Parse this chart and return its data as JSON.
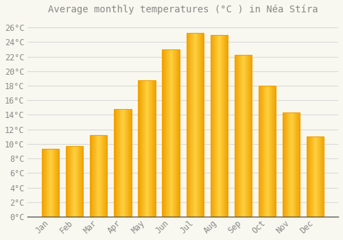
{
  "title": "Average monthly temperatures (°C ) in Néa Stíra",
  "months": [
    "Jan",
    "Feb",
    "Mar",
    "Apr",
    "May",
    "Jun",
    "Jul",
    "Aug",
    "Sep",
    "Oct",
    "Nov",
    "Dec"
  ],
  "values": [
    9.3,
    9.7,
    11.2,
    14.8,
    18.8,
    23.0,
    25.3,
    25.0,
    22.2,
    18.0,
    14.3,
    11.0
  ],
  "bar_color_center": "#FFD040",
  "bar_color_edge": "#F0A000",
  "background_color": "#F8F8F0",
  "grid_color": "#D8D8D8",
  "text_color": "#888888",
  "axis_color": "#555555",
  "ylim": [
    0,
    27
  ],
  "ytick_step": 2,
  "title_fontsize": 10,
  "tick_fontsize": 8.5,
  "font_family": "monospace"
}
